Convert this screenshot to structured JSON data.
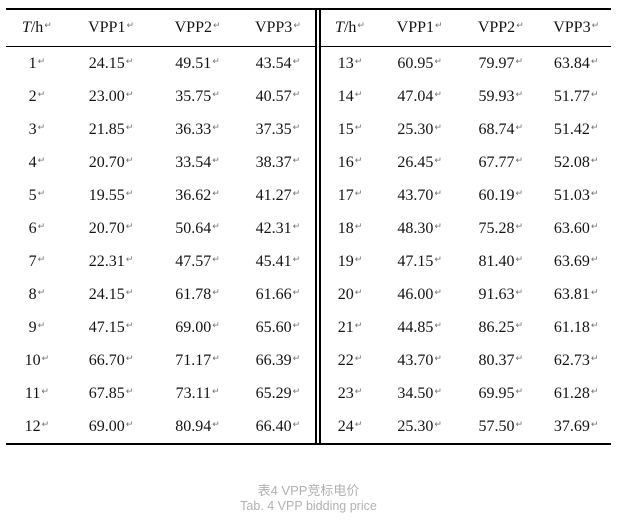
{
  "table": {
    "headers": [
      {
        "italic": "T",
        "text": "/h"
      },
      {
        "italic": "",
        "text": "VPP1"
      },
      {
        "italic": "",
        "text": "VPP2"
      },
      {
        "italic": "",
        "text": "VPP3"
      }
    ],
    "end_of_cell_mark": "↵",
    "left_rows": [
      [
        "1",
        "24.15",
        "49.51",
        "43.54"
      ],
      [
        "2",
        "23.00",
        "35.75",
        "40.57"
      ],
      [
        "3",
        "21.85",
        "36.33",
        "37.35"
      ],
      [
        "4",
        "20.70",
        "33.54",
        "38.37"
      ],
      [
        "5",
        "19.55",
        "36.62",
        "41.27"
      ],
      [
        "6",
        "20.70",
        "50.64",
        "42.31"
      ],
      [
        "7",
        "22.31",
        "47.57",
        "45.41"
      ],
      [
        "8",
        "24.15",
        "61.78",
        "61.66"
      ],
      [
        "9",
        "47.15",
        "69.00",
        "65.60"
      ],
      [
        "10",
        "66.70",
        "71.17",
        "66.39"
      ],
      [
        "11",
        "67.85",
        "73.11",
        "65.29"
      ],
      [
        "12",
        "69.00",
        "80.94",
        "66.40"
      ]
    ],
    "right_rows": [
      [
        "13",
        "60.95",
        "79.97",
        "63.84"
      ],
      [
        "14",
        "47.04",
        "59.93",
        "51.77"
      ],
      [
        "15",
        "25.30",
        "68.74",
        "51.42"
      ],
      [
        "16",
        "26.45",
        "67.77",
        "52.08"
      ],
      [
        "17",
        "43.70",
        "60.19",
        "51.03"
      ],
      [
        "18",
        "48.30",
        "75.28",
        "63.60"
      ],
      [
        "19",
        "47.15",
        "81.40",
        "63.69"
      ],
      [
        "20",
        "46.00",
        "91.63",
        "63.81"
      ],
      [
        "21",
        "44.85",
        "86.25",
        "61.18"
      ],
      [
        "22",
        "43.70",
        "80.37",
        "62.73"
      ],
      [
        "23",
        "34.50",
        "69.95",
        "61.28"
      ],
      [
        "24",
        "25.30",
        "57.50",
        "37.69"
      ]
    ]
  },
  "caption": {
    "title_zh": "表4 VPP竞标电价",
    "title_en": "Tab. 4 VPP bidding price"
  },
  "colors": {
    "table_line": "#000000",
    "table_text": "#141414",
    "end_of_cell_mark": "#707070",
    "caption_text": "#b1b1b1",
    "background": "#ffffff"
  }
}
